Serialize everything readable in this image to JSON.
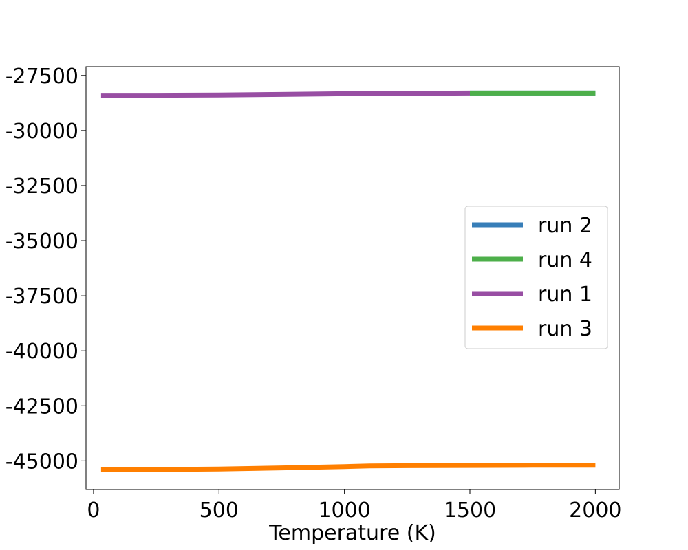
{
  "chart_data": {
    "type": "line",
    "title": "",
    "xlabel": "Temperature (K)",
    "ylabel": "",
    "xlim": [
      -30,
      2095
    ],
    "ylim": [
      -46300,
      -27100
    ],
    "xticks": [
      0,
      500,
      1000,
      1500,
      2000
    ],
    "yticks": [
      -27500,
      -30000,
      -32500,
      -35000,
      -37500,
      -40000,
      -42500,
      -45000
    ],
    "grid": false,
    "legend": {
      "placement": "center-right"
    },
    "series": [
      {
        "name": "run 2",
        "color": "#377eb8",
        "x": [
          1500,
          2000
        ],
        "y": [
          -28300,
          -28300
        ]
      },
      {
        "name": "run 4",
        "color": "#4daf4a",
        "x": [
          1500,
          1750,
          2000
        ],
        "y": [
          -28300,
          -28300,
          -28300
        ]
      },
      {
        "name": "run 1",
        "color": "#984ea3",
        "x": [
          30,
          250,
          500,
          750,
          1000,
          1250,
          1500
        ],
        "y": [
          -28400,
          -28400,
          -28390,
          -28360,
          -28330,
          -28310,
          -28300
        ]
      },
      {
        "name": "run 3",
        "color": "#ff7f00",
        "x": [
          30,
          250,
          500,
          750,
          1000,
          1100,
          1250,
          1500,
          1750,
          2000
        ],
        "y": [
          -45400,
          -45390,
          -45370,
          -45320,
          -45260,
          -45230,
          -45220,
          -45210,
          -45200,
          -45200
        ]
      }
    ]
  }
}
